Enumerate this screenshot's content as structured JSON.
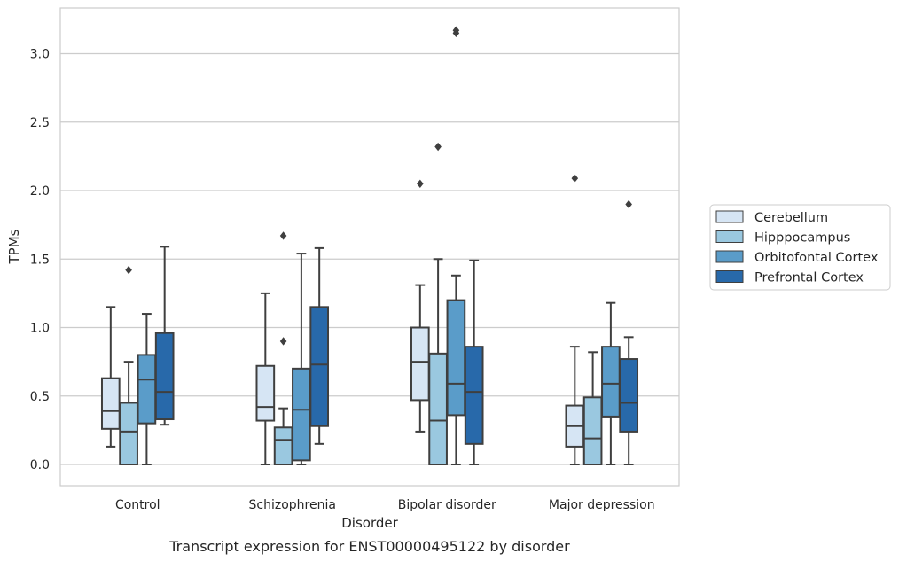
{
  "chart_data": {
    "type": "box",
    "xlabel": "Disorder",
    "ylabel": "TPMs",
    "caption": "Transcript expression for ENST00000495122 by disorder",
    "ylim": [
      -0.15,
      3.35
    ],
    "yticks": [
      "0.0",
      "0.5",
      "1.0",
      "1.5",
      "2.0",
      "2.5",
      "3.0"
    ],
    "grid": "horizontal",
    "legend_position": "right",
    "categories": [
      "Control",
      "Schizophrenia",
      "Bipolar disorder",
      "Major depression"
    ],
    "series": [
      {
        "name": "Cerebellum",
        "color": "#d6e5f4",
        "boxes": [
          {
            "whisker_low": 0.13,
            "q1": 0.26,
            "median": 0.39,
            "q3": 0.63,
            "whisker_high": 1.15,
            "outliers": []
          },
          {
            "whisker_low": 0.0,
            "q1": 0.32,
            "median": 0.42,
            "q3": 0.72,
            "whisker_high": 1.25,
            "outliers": []
          },
          {
            "whisker_low": 0.24,
            "q1": 0.47,
            "median": 0.75,
            "q3": 1.0,
            "whisker_high": 1.31,
            "outliers": [
              2.05
            ]
          },
          {
            "whisker_low": 0.0,
            "q1": 0.13,
            "median": 0.28,
            "q3": 0.43,
            "whisker_high": 0.86,
            "outliers": [
              2.09
            ]
          }
        ]
      },
      {
        "name": "Hipppocampus",
        "color": "#9ac8e0",
        "boxes": [
          {
            "whisker_low": 0.0,
            "q1": 0.0,
            "median": 0.24,
            "q3": 0.45,
            "whisker_high": 0.75,
            "outliers": [
              1.42
            ]
          },
          {
            "whisker_low": 0.0,
            "q1": 0.0,
            "median": 0.18,
            "q3": 0.27,
            "whisker_high": 0.41,
            "outliers": [
              0.9,
              1.67
            ]
          },
          {
            "whisker_low": 0.0,
            "q1": 0.0,
            "median": 0.32,
            "q3": 0.81,
            "whisker_high": 1.5,
            "outliers": [
              2.32
            ]
          },
          {
            "whisker_low": 0.0,
            "q1": 0.0,
            "median": 0.19,
            "q3": 0.49,
            "whisker_high": 0.82,
            "outliers": []
          }
        ]
      },
      {
        "name": "Orbitofontal Cortex",
        "color": "#5a9cc9",
        "boxes": [
          {
            "whisker_low": 0.0,
            "q1": 0.3,
            "median": 0.62,
            "q3": 0.8,
            "whisker_high": 1.1,
            "outliers": []
          },
          {
            "whisker_low": 0.0,
            "q1": 0.03,
            "median": 0.4,
            "q3": 0.7,
            "whisker_high": 1.54,
            "outliers": []
          },
          {
            "whisker_low": 0.0,
            "q1": 0.36,
            "median": 0.59,
            "q3": 1.2,
            "whisker_high": 1.38,
            "outliers": [
              3.15,
              3.17
            ]
          },
          {
            "whisker_low": 0.0,
            "q1": 0.35,
            "median": 0.59,
            "q3": 0.86,
            "whisker_high": 1.18,
            "outliers": []
          }
        ]
      },
      {
        "name": "Prefrontal Cortex",
        "color": "#2869aa",
        "boxes": [
          {
            "whisker_low": 0.29,
            "q1": 0.33,
            "median": 0.53,
            "q3": 0.96,
            "whisker_high": 1.59,
            "outliers": []
          },
          {
            "whisker_low": 0.15,
            "q1": 0.28,
            "median": 0.73,
            "q3": 1.15,
            "whisker_high": 1.58,
            "outliers": []
          },
          {
            "whisker_low": 0.0,
            "q1": 0.15,
            "median": 0.53,
            "q3": 0.86,
            "whisker_high": 1.49,
            "outliers": []
          },
          {
            "whisker_low": 0.0,
            "q1": 0.24,
            "median": 0.45,
            "q3": 0.77,
            "whisker_high": 0.93,
            "outliers": [
              1.9
            ]
          }
        ]
      }
    ]
  }
}
